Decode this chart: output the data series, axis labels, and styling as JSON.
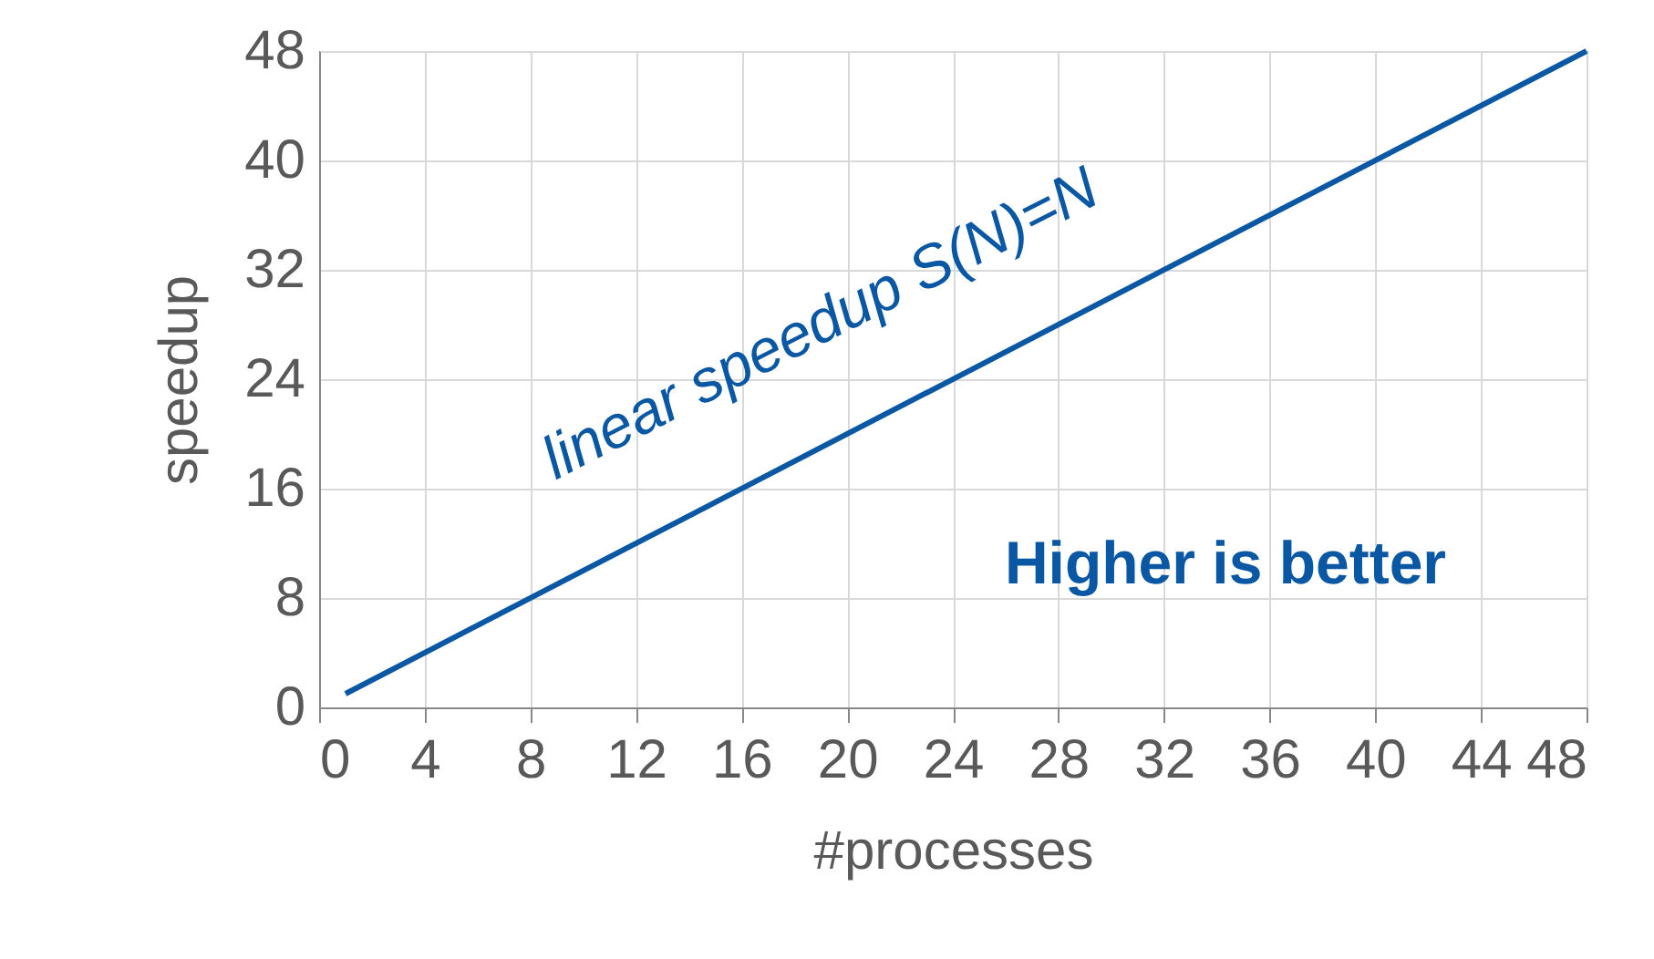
{
  "chart_data": {
    "type": "line",
    "xlabel": "#processes",
    "ylabel": "speedup",
    "x": [
      1,
      48
    ],
    "series": [
      {
        "color": "#0a57a4",
        "values": [
          1,
          48
        ]
      }
    ],
    "xlim": [
      0,
      48
    ],
    "xticks": [
      0,
      4,
      8,
      12,
      16,
      20,
      24,
      28,
      32,
      36,
      40,
      44,
      48
    ],
    "ylim": [
      0,
      48
    ],
    "yticks": [
      0,
      8,
      16,
      24,
      32,
      40,
      48
    ],
    "grid": true,
    "marker": "none",
    "line_style": "solid",
    "annotations": [
      "linear speedup S(N)=N",
      "Higher is better"
    ]
  }
}
